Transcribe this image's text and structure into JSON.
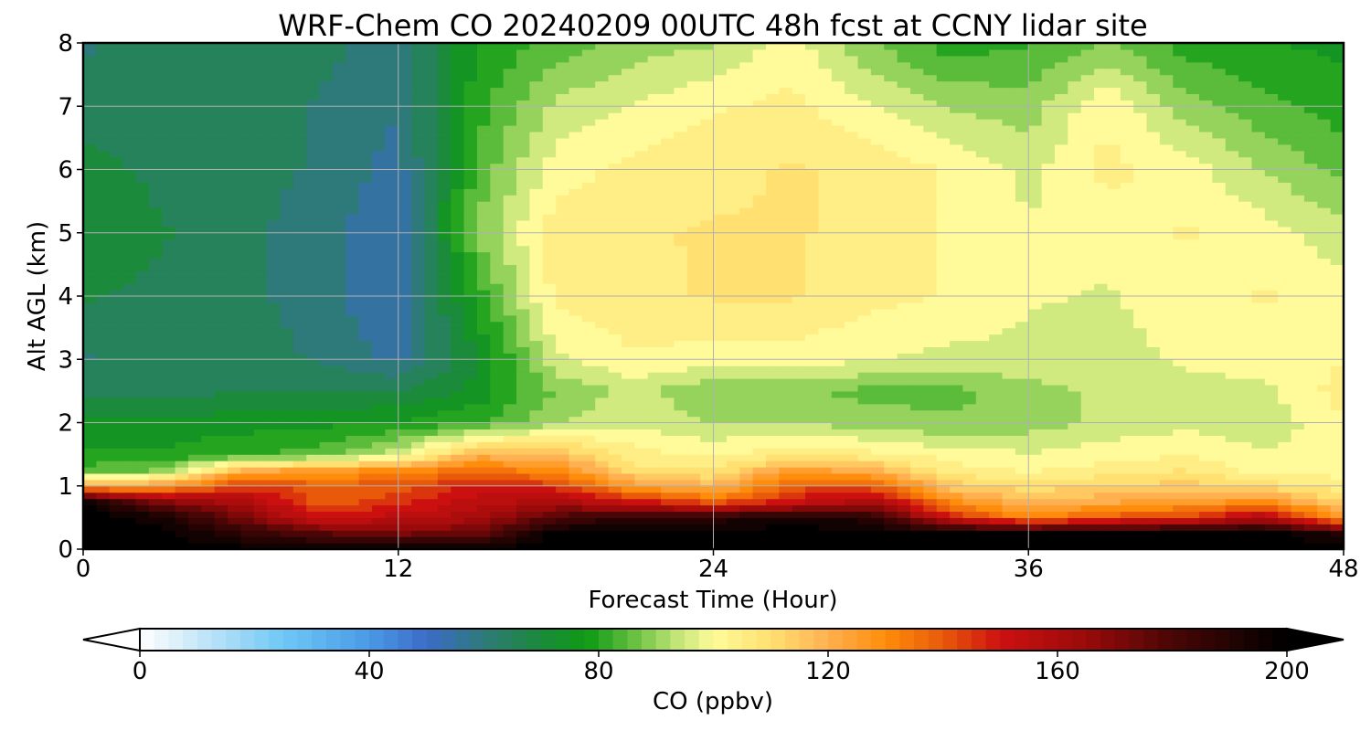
{
  "chart_data": {
    "type": "heatmap",
    "title": "WRF-Chem CO  20240209 00UTC 48h fcst at CCNY lidar site",
    "xlabel": "Forecast Time (Hour)",
    "ylabel": "Alt AGL (km)",
    "xlim": [
      0,
      48
    ],
    "ylim": [
      0,
      8
    ],
    "x_ticks": [
      "0",
      "12",
      "24",
      "36",
      "48"
    ],
    "y_ticks": [
      "0",
      "1",
      "2",
      "3",
      "4",
      "5",
      "6",
      "7",
      "8"
    ],
    "grid": true,
    "colorbar": {
      "label": "CO  (ppbv)",
      "range": [
        0,
        200
      ],
      "ticks": [
        "0",
        "40",
        "80",
        "120",
        "160",
        "200"
      ],
      "extend": "both",
      "orientation": "horizontal",
      "colormap": [
        {
          "v": 0,
          "c": "#ffffff"
        },
        {
          "v": 10,
          "c": "#c8e8f8"
        },
        {
          "v": 25,
          "c": "#6ec8f6"
        },
        {
          "v": 40,
          "c": "#4a9ae6"
        },
        {
          "v": 50,
          "c": "#3a6cc8"
        },
        {
          "v": 60,
          "c": "#2e7a7a"
        },
        {
          "v": 70,
          "c": "#1b8a3a"
        },
        {
          "v": 78,
          "c": "#0f9a15"
        },
        {
          "v": 86,
          "c": "#66c040"
        },
        {
          "v": 94,
          "c": "#c6e67a"
        },
        {
          "v": 100,
          "c": "#fffb9a"
        },
        {
          "v": 110,
          "c": "#ffe070"
        },
        {
          "v": 120,
          "c": "#ffb050"
        },
        {
          "v": 130,
          "c": "#ff8c0a"
        },
        {
          "v": 140,
          "c": "#e85a0a"
        },
        {
          "v": 150,
          "c": "#cc1010"
        },
        {
          "v": 165,
          "c": "#9a0a0a"
        },
        {
          "v": 180,
          "c": "#4a0606"
        },
        {
          "v": 200,
          "c": "#000000"
        }
      ]
    },
    "hours": [
      0,
      3,
      6,
      9,
      12,
      15,
      18,
      21,
      24,
      27,
      30,
      33,
      36,
      39,
      42,
      45,
      48
    ],
    "altitudes_km": [
      0,
      0.25,
      0.5,
      0.75,
      1,
      1.25,
      1.5,
      2,
      2.5,
      3,
      4,
      5,
      6,
      7,
      8
    ],
    "values_ppbv": [
      [
        200,
        200,
        200,
        200,
        200,
        200,
        200,
        200,
        200,
        200,
        200,
        200,
        200,
        200,
        200,
        200,
        200
      ],
      [
        200,
        200,
        188,
        178,
        172,
        175,
        200,
        200,
        200,
        200,
        200,
        200,
        200,
        200,
        200,
        200,
        190
      ],
      [
        200,
        195,
        172,
        150,
        155,
        160,
        180,
        190,
        190,
        195,
        190,
        150,
        130,
        140,
        145,
        160,
        125
      ],
      [
        200,
        170,
        160,
        140,
        145,
        155,
        160,
        150,
        140,
        150,
        160,
        130,
        118,
        122,
        125,
        130,
        112
      ],
      [
        125,
        125,
        145,
        140,
        140,
        150,
        145,
        125,
        118,
        140,
        140,
        115,
        110,
        112,
        115,
        110,
        105
      ],
      [
        85,
        88,
        120,
        125,
        130,
        135,
        130,
        110,
        108,
        125,
        120,
        105,
        102,
        105,
        108,
        100,
        100
      ],
      [
        78,
        78,
        82,
        85,
        95,
        120,
        118,
        104,
        102,
        106,
        104,
        100,
        98,
        100,
        102,
        98,
        100
      ],
      [
        74,
        75,
        75,
        76,
        78,
        82,
        92,
        97,
        92,
        92,
        90,
        88,
        90,
        94,
        96,
        94,
        102
      ],
      [
        66,
        66,
        67,
        67,
        68,
        74,
        88,
        94,
        88,
        88,
        86,
        86,
        90,
        94,
        96,
        96,
        105
      ],
      [
        62,
        64,
        65,
        62,
        56,
        72,
        96,
        102,
        100,
        100,
        98,
        96,
        96,
        96,
        98,
        100,
        102
      ],
      [
        68,
        66,
        64,
        60,
        52,
        80,
        104,
        106,
        108,
        108,
        104,
        102,
        98,
        97,
        100,
        103,
        100
      ],
      [
        72,
        68,
        64,
        60,
        52,
        88,
        106,
        107,
        108,
        108,
        106,
        102,
        98,
        100,
        103,
        100,
        94
      ],
      [
        70,
        66,
        64,
        62,
        55,
        84,
        100,
        104,
        106,
        108,
        106,
        102,
        96,
        104,
        100,
        92,
        86
      ],
      [
        64,
        64,
        66,
        62,
        58,
        80,
        94,
        98,
        102,
        104,
        98,
        92,
        90,
        102,
        90,
        84,
        80
      ],
      [
        62,
        64,
        66,
        64,
        60,
        78,
        84,
        90,
        92,
        100,
        88,
        80,
        82,
        88,
        80,
        78,
        76
      ]
    ]
  }
}
